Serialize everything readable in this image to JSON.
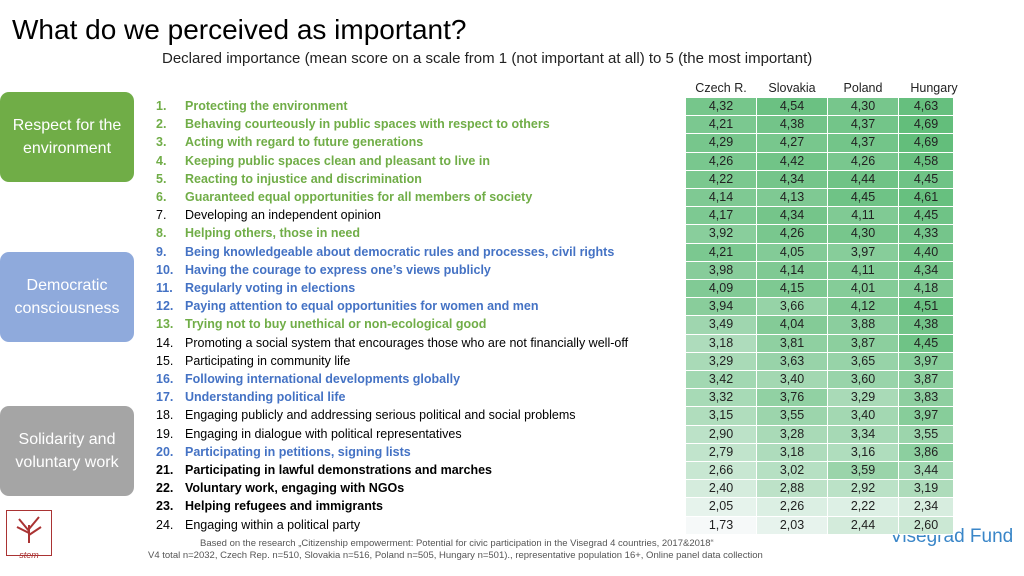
{
  "header": {
    "title": "What do we perceived as important?",
    "subtitle": "Declared importance (mean score on a scale from 1 (not important at all) to 5 (the most important)"
  },
  "groups": [
    {
      "label": "Respect for the environment",
      "color": "#70ad47"
    },
    {
      "label": "Democratic consciousness",
      "color": "#8faadc"
    },
    {
      "label": "Solidarity and voluntary work",
      "color": "#a5a5a5"
    }
  ],
  "items": [
    {
      "number": "1.",
      "label": "Protecting the environment",
      "color": "#70ad47",
      "bold": true
    },
    {
      "number": "2.",
      "label": "Behaving courteously in public spaces with respect to others",
      "color": "#70ad47",
      "bold": true
    },
    {
      "number": "3.",
      "label": "Acting with regard to future generations",
      "color": "#70ad47",
      "bold": true
    },
    {
      "number": "4.",
      "label": "Keeping public spaces clean and pleasant to live in",
      "color": "#70ad47",
      "bold": true
    },
    {
      "number": "5.",
      "label": "Reacting to injustice and discrimination",
      "color": "#70ad47",
      "bold": true
    },
    {
      "number": "6.",
      "label": "Guaranteed equal opportunities for all members of society",
      "color": "#70ad47",
      "bold": true
    },
    {
      "number": "7.",
      "label": "Developing an independent opinion",
      "color": "#000000",
      "bold": false
    },
    {
      "number": "8.",
      "label": "Helping others, those in need",
      "color": "#70ad47",
      "bold": true
    },
    {
      "number": "9.",
      "label": "Being knowledgeable about democratic rules and processes, civil rights",
      "color": "#4472c4",
      "bold": true
    },
    {
      "number": "10.",
      "label": "Having the courage to express one’s views publicly",
      "color": "#4472c4",
      "bold": true
    },
    {
      "number": "11.",
      "label": "Regularly voting in elections",
      "color": "#4472c4",
      "bold": true
    },
    {
      "number": "12.",
      "label": "Paying attention to equal opportunities for women and men",
      "color": "#4472c4",
      "bold": true
    },
    {
      "number": "13.",
      "label": "Trying not to buy unethical or non-ecological good",
      "color": "#70ad47",
      "bold": true
    },
    {
      "number": "14.",
      "label": "Promoting a social system that encourages those who are not financially well-off",
      "color": "#000000",
      "bold": false
    },
    {
      "number": "15.",
      "label": "Participating in community life",
      "color": "#000000",
      "bold": false
    },
    {
      "number": "16.",
      "label": "Following international developments globally",
      "color": "#4472c4",
      "bold": true
    },
    {
      "number": "17.",
      "label": "Understanding political life",
      "color": "#4472c4",
      "bold": true
    },
    {
      "number": "18.",
      "label": "Engaging publicly and addressing serious political and social problems",
      "color": "#000000",
      "bold": false
    },
    {
      "number": "19.",
      "label": "Engaging in dialogue with political representatives",
      "color": "#000000",
      "bold": false
    },
    {
      "number": "20.",
      "label": "Participating in petitions, signing lists",
      "color": "#4472c4",
      "bold": true
    },
    {
      "number": "21.",
      "label": "Participating in lawful demonstrations and marches",
      "color": "#000000",
      "bold": true
    },
    {
      "number": "22.",
      "label": "Voluntary work, engaging with NGOs",
      "color": "#000000",
      "bold": true
    },
    {
      "number": "23.",
      "label": "Helping refugees and immigrants",
      "color": "#000000",
      "bold": true
    },
    {
      "number": "24.",
      "label": "Engaging within a political party",
      "color": "#000000",
      "bold": false
    }
  ],
  "table": {
    "columns": [
      "Czech R.",
      "Slovakia",
      "Poland",
      "Hungary"
    ],
    "rows": [
      [
        "4,32",
        "4,54",
        "4,30",
        "4,63"
      ],
      [
        "4,21",
        "4,38",
        "4,37",
        "4,69"
      ],
      [
        "4,29",
        "4,27",
        "4,37",
        "4,69"
      ],
      [
        "4,26",
        "4,42",
        "4,26",
        "4,58"
      ],
      [
        "4,22",
        "4,34",
        "4,44",
        "4,45"
      ],
      [
        "4,14",
        "4,13",
        "4,45",
        "4,61"
      ],
      [
        "4,17",
        "4,34",
        "4,11",
        "4,45"
      ],
      [
        "3,92",
        "4,26",
        "4,30",
        "4,33"
      ],
      [
        "4,21",
        "4,05",
        "3,97",
        "4,40"
      ],
      [
        "3,98",
        "4,14",
        "4,11",
        "4,34"
      ],
      [
        "4,09",
        "4,15",
        "4,01",
        "4,18"
      ],
      [
        "3,94",
        "3,66",
        "4,12",
        "4,51"
      ],
      [
        "3,49",
        "4,04",
        "3,88",
        "4,38"
      ],
      [
        "3,18",
        "3,81",
        "3,87",
        "4,45"
      ],
      [
        "3,29",
        "3,63",
        "3,65",
        "3,97"
      ],
      [
        "3,42",
        "3,40",
        "3,60",
        "3,87"
      ],
      [
        "3,32",
        "3,76",
        "3,29",
        "3,83"
      ],
      [
        "3,15",
        "3,55",
        "3,40",
        "3,97"
      ],
      [
        "2,90",
        "3,28",
        "3,34",
        "3,55"
      ],
      [
        "2,79",
        "3,18",
        "3,16",
        "3,86"
      ],
      [
        "2,66",
        "3,02",
        "3,59",
        "3,44"
      ],
      [
        "2,40",
        "2,88",
        "2,92",
        "3,19"
      ],
      [
        "2,05",
        "2,26",
        "2,22",
        "2,34"
      ],
      [
        "1,73",
        "2,03",
        "2,44",
        "2,60"
      ]
    ]
  },
  "footer": {
    "source": "Based on the research „Citizenship empowerment: Potential for civic participation in the Visegrad 4 countries, 2017&2018“",
    "sample": "V4 total n=2032, Czech Rep. n=510, Slovakia n=516, Poland n=505, Hungary n=501)., representative population 16+, Online panel data collection"
  },
  "logos": {
    "left": "stem",
    "right": "Visegrad Fund"
  }
}
